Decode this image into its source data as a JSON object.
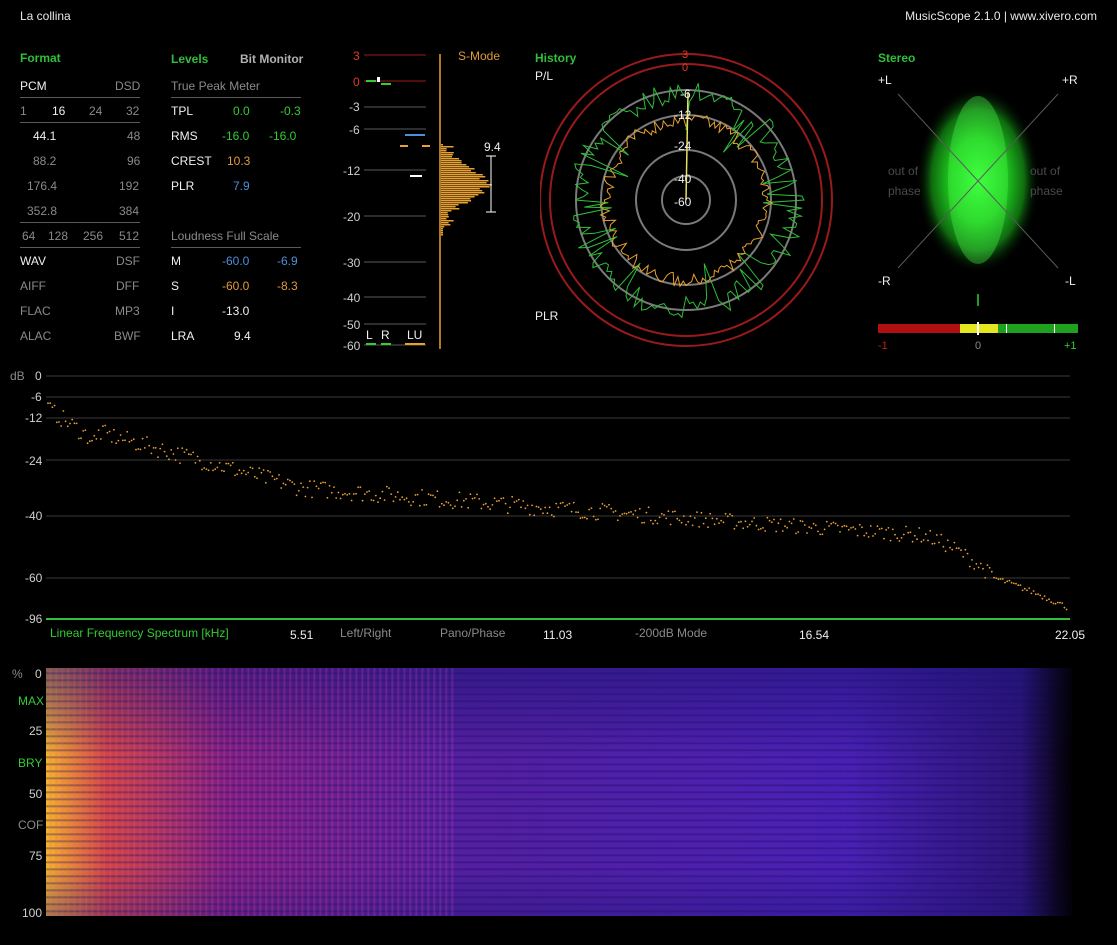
{
  "header": {
    "title": "La collina",
    "app": "MusicScope 2.1.0 | www.xivero.com"
  },
  "format": {
    "title": "Format",
    "pcm_label": "PCM",
    "dsd_label": "DSD",
    "bits": [
      "1",
      "16",
      "24",
      "32"
    ],
    "rates": [
      [
        "44.1",
        "48"
      ],
      [
        "88.2",
        "96"
      ],
      [
        "176.4",
        "192"
      ],
      [
        "352.8",
        "384"
      ]
    ],
    "dsd_rates": [
      "64",
      "128",
      "256",
      "512"
    ],
    "containers": [
      [
        "WAV",
        "DSF"
      ],
      [
        "AIFF",
        "DFF"
      ],
      [
        "FLAC",
        "MP3"
      ],
      [
        "ALAC",
        "BWF"
      ]
    ]
  },
  "levels": {
    "title": "Levels",
    "bit_monitor": "Bit Monitor",
    "tpm_title": "True Peak Meter",
    "tpl": {
      "label": "TPL",
      "l": "0.0",
      "r": "-0.3"
    },
    "rms": {
      "label": "RMS",
      "l": "-16.0",
      "r": "-16.0"
    },
    "crest": {
      "label": "CREST",
      "v": "10.3"
    },
    "plr": {
      "label": "PLR",
      "v": "7.9"
    },
    "lfs_title": "Loudness Full Scale",
    "m": {
      "label": "M",
      "l": "-60.0",
      "r": "-6.9"
    },
    "s": {
      "label": "S",
      "l": "-60.0",
      "r": "-8.3"
    },
    "i": {
      "label": "I",
      "v": "-13.0"
    },
    "lra": {
      "label": "LRA",
      "v": "9.4"
    }
  },
  "meter": {
    "smode": "S-Mode",
    "scale": [
      "3",
      "0",
      "-3",
      "-6",
      "-12",
      "-20",
      "-30",
      "-40",
      "-50",
      "-60"
    ],
    "lra_value": "9.4",
    "l_label": "L",
    "r_label": "R",
    "lu_label": "LU"
  },
  "history": {
    "title": "History",
    "pl": "P/L",
    "plr": "PLR",
    "rings": [
      "3",
      "0",
      "-6",
      "-12",
      "-24",
      "-40",
      "-60"
    ]
  },
  "stereo": {
    "title": "Stereo",
    "pl": "+L",
    "pr": "+R",
    "nr": "-R",
    "nl": "-L",
    "oop_left_1": "out of",
    "oop_left_2": "phase",
    "oop_right_1": "out of",
    "oop_right_2": "phase",
    "corr": [
      "-1",
      "0",
      "+1"
    ]
  },
  "spectrum": {
    "db_label": "dB",
    "y_ticks": [
      "0",
      "-6",
      "-12",
      "-24",
      "-40",
      "-60",
      "-96"
    ],
    "x_title": "Linear Frequency Spectrum [kHz]",
    "x_ticks": [
      "5.51",
      "11.03",
      "16.54",
      "22.05"
    ],
    "modes": [
      "Left/Right",
      "Pano/Phase",
      "-200dB Mode"
    ]
  },
  "spectrogram": {
    "pct_label": "%",
    "ticks": [
      "0",
      "25",
      "50",
      "75",
      "100"
    ],
    "markers": [
      "MAX",
      "BRY",
      "COF"
    ]
  },
  "colors": {
    "accent_green": "#2fbf3a",
    "orange": "#e8a030",
    "red": "#c02020",
    "blue": "#4f8fd9"
  }
}
